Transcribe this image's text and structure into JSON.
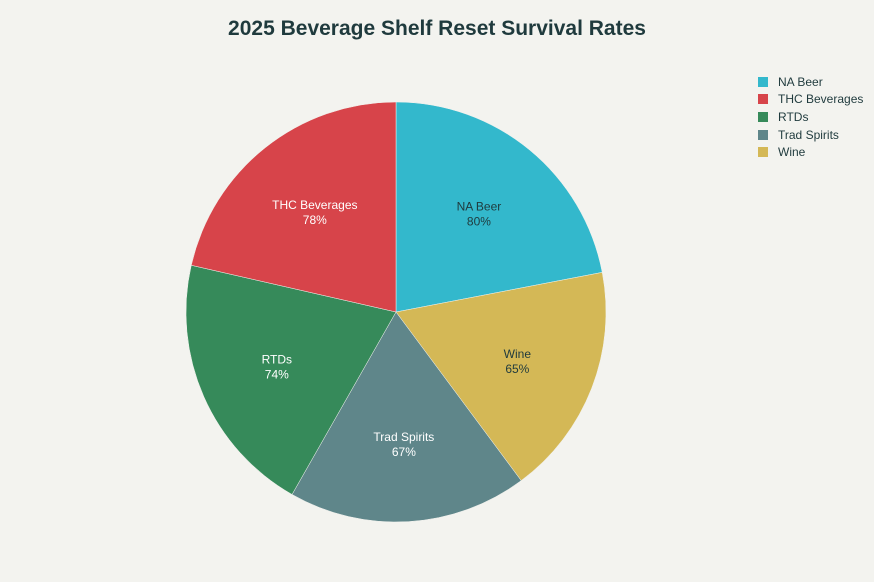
{
  "chart_data": {
    "type": "pie",
    "title": "2025 Beverage Shelf Reset Survival Rates",
    "slices": [
      {
        "label": "NA Beer",
        "value": 80,
        "display": "80%",
        "color": "#33b8cc",
        "text_color": "#1f3a3d"
      },
      {
        "label": "Wine",
        "value": 65,
        "display": "65%",
        "color": "#d4b856",
        "text_color": "#1f3a3d"
      },
      {
        "label": "Trad Spirits",
        "value": 67,
        "display": "67%",
        "color": "#5f868a",
        "text_color": "#ffffff"
      },
      {
        "label": "RTDs",
        "value": 74,
        "display": "74%",
        "color": "#368a5a",
        "text_color": "#ffffff"
      },
      {
        "label": "THC Beverages",
        "value": 78,
        "display": "78%",
        "color": "#d7444a",
        "text_color": "#ffffff"
      }
    ],
    "legend": {
      "position": "top-right",
      "order": [
        "NA Beer",
        "THC Beverages",
        "RTDs",
        "Trad Spirits",
        "Wine"
      ]
    }
  }
}
